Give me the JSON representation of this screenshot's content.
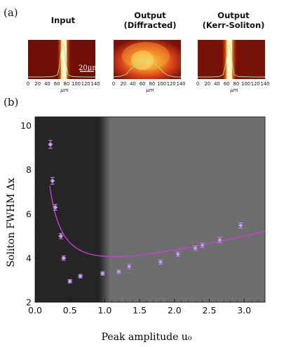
{
  "panel_labels": {
    "a": "(a)",
    "b": "(b)"
  },
  "images": [
    {
      "title_line1": "Input",
      "title_line2": ""
    },
    {
      "title_line1": "Output",
      "title_line2": "(Diffracted)"
    },
    {
      "title_line1": "Output",
      "title_line2": "(Kerr-Soliton)"
    }
  ],
  "image_axis": {
    "ticks": [
      "0",
      "20",
      "40",
      "60",
      "80",
      "100",
      "120",
      "140"
    ],
    "unit": "μm"
  },
  "scale_bar_label": "20μm",
  "chart_data": {
    "type": "scatter",
    "xlabel": "Peak amplitude u₀",
    "ylabel": "Soliton FWHM Δx",
    "xlim": [
      0.0,
      3.3
    ],
    "ylim": [
      2.0,
      10.4
    ],
    "x_ticks": [
      0.0,
      0.5,
      1.0,
      1.5,
      2.0,
      2.5,
      3.0
    ],
    "x_tick_labels": [
      "0.0",
      "0.5",
      "1.0",
      "1.5",
      "2.0",
      "2.5",
      "3.0"
    ],
    "y_ticks": [
      2,
      4,
      6,
      8,
      10
    ],
    "y_tick_labels": [
      "2",
      "4",
      "6",
      "8",
      "10"
    ],
    "shading_boundary_x": 1.0,
    "points": [
      {
        "x": 0.22,
        "y": 9.15,
        "err": 0.18
      },
      {
        "x": 0.25,
        "y": 7.5,
        "err": 0.15
      },
      {
        "x": 0.29,
        "y": 6.3,
        "err": 0.13
      },
      {
        "x": 0.37,
        "y": 5.0,
        "err": 0.12
      },
      {
        "x": 0.41,
        "y": 4.0,
        "err": 0.1
      },
      {
        "x": 0.5,
        "y": 2.95,
        "err": 0.08
      },
      {
        "x": 0.65,
        "y": 3.18,
        "err": 0.08
      },
      {
        "x": 0.97,
        "y": 3.3,
        "err": 0.08
      },
      {
        "x": 1.2,
        "y": 3.38,
        "err": 0.08
      },
      {
        "x": 1.35,
        "y": 3.62,
        "err": 0.1
      },
      {
        "x": 1.8,
        "y": 3.82,
        "err": 0.1
      },
      {
        "x": 2.05,
        "y": 4.18,
        "err": 0.1
      },
      {
        "x": 2.3,
        "y": 4.45,
        "err": 0.1
      },
      {
        "x": 2.4,
        "y": 4.58,
        "err": 0.1
      },
      {
        "x": 2.65,
        "y": 4.82,
        "err": 0.12
      },
      {
        "x": 2.95,
        "y": 5.48,
        "err": 0.12
      }
    ],
    "fit_curve": {
      "a": 1.02,
      "b": 0.8,
      "c": 2.26
    },
    "colors": {
      "point_fill": "#c9a0ea",
      "point_edge": "#7a56a8",
      "fit_line": "#d23fe0",
      "dark_region": "#252525",
      "light_region": "#6e6e6e"
    }
  }
}
